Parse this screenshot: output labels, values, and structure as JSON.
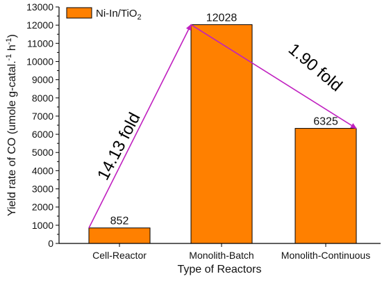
{
  "chart_data": {
    "type": "bar",
    "categories": [
      "Cell-Reactor",
      "Monolith-Batch",
      "Monolith-Continuous"
    ],
    "series": [
      {
        "name": "Ni-In/TiO2",
        "values": [
          852,
          12028,
          6325
        ]
      }
    ],
    "data_labels": [
      "852",
      "12028",
      "6325"
    ],
    "xlabel": "Type of Reactors",
    "ylabel": "Yield rate of CO (umole g-catal.-1 h-1)",
    "ylim": [
      0,
      13000
    ],
    "yticks": [
      "0",
      "1000",
      "2000",
      "3000",
      "4000",
      "5000",
      "6000",
      "7000",
      "8000",
      "9000",
      "10000",
      "11000",
      "12000",
      "13000"
    ],
    "legend_position": "top-left",
    "annotations": [
      {
        "text": "14.13  fold",
        "from": "Cell-Reactor",
        "to": "Monolith-Batch"
      },
      {
        "text": "1.90  fold",
        "from": "Monolith-Batch",
        "to": "Monolith-Continuous"
      }
    ],
    "colors": {
      "bar": "#FF8000",
      "bar_edge": "#000000",
      "arrow": "#C020C0"
    }
  }
}
